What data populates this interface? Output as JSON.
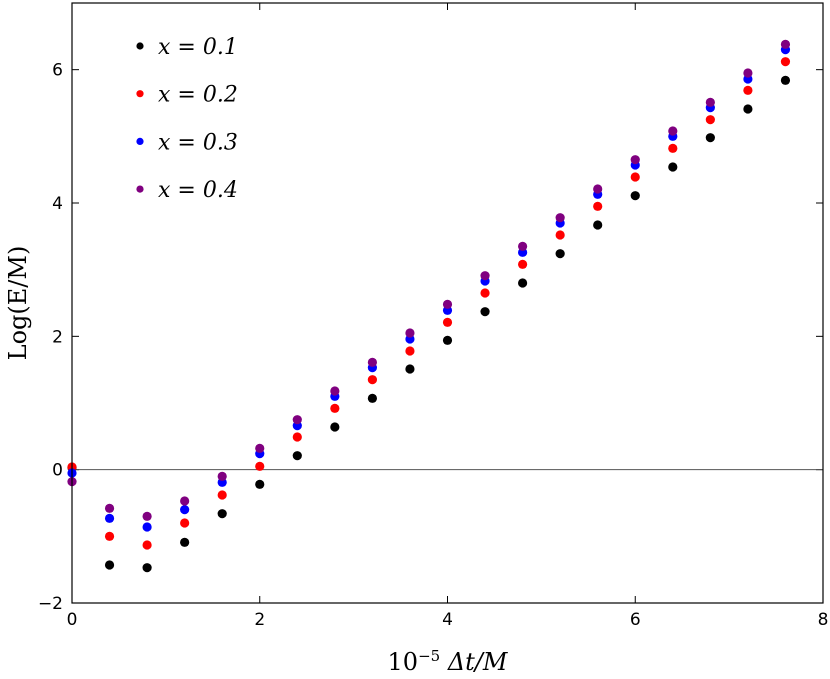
{
  "chart_data": {
    "type": "scatter",
    "xlabel_base": "10",
    "xlabel_exp": "−5",
    "xlabel_rest": " Δt/M",
    "ylabel": "Log(E/M)",
    "xlim": [
      0,
      8
    ],
    "ylim": [
      -2,
      7
    ],
    "xticks": [
      0,
      2,
      4,
      6,
      8
    ],
    "yticks": [
      -2,
      0,
      2,
      4,
      6
    ],
    "xtick_labels": [
      "0",
      "2",
      "4",
      "6",
      "8"
    ],
    "ytick_labels": [
      "−2",
      "0",
      "2",
      "4",
      "6"
    ],
    "hline": 0,
    "grid": false,
    "legend_position": "top-left",
    "x": [
      0,
      0.4,
      0.8,
      1.2,
      1.6,
      2.0,
      2.4,
      2.8,
      3.2,
      3.6,
      4.0,
      4.4,
      4.8,
      5.2,
      5.6,
      6.0,
      6.4,
      6.8,
      7.2,
      7.6
    ],
    "series": [
      {
        "name": "x = 0.1",
        "color": "#000000",
        "values": [
          0.03,
          -1.43,
          -1.47,
          -1.09,
          -0.66,
          -0.22,
          0.21,
          0.64,
          1.07,
          1.51,
          1.94,
          2.37,
          2.8,
          3.24,
          3.67,
          4.11,
          4.54,
          4.98,
          5.41,
          5.84
        ]
      },
      {
        "name": "x = 0.2",
        "color": "#ff0000",
        "values": [
          0.04,
          -1.0,
          -1.13,
          -0.8,
          -0.38,
          0.05,
          0.49,
          0.92,
          1.35,
          1.78,
          2.21,
          2.65,
          3.08,
          3.52,
          3.95,
          4.39,
          4.82,
          5.25,
          5.69,
          6.12
        ]
      },
      {
        "name": "x = 0.3",
        "color": "#0000ff",
        "values": [
          -0.05,
          -0.73,
          -0.86,
          -0.6,
          -0.19,
          0.24,
          0.66,
          1.1,
          1.53,
          1.96,
          2.39,
          2.83,
          3.26,
          3.7,
          4.13,
          4.57,
          5.0,
          5.43,
          5.86,
          6.3
        ]
      },
      {
        "name": "x = 0.4",
        "color": "#800080",
        "values": [
          -0.18,
          -0.58,
          -0.7,
          -0.47,
          -0.1,
          0.32,
          0.75,
          1.18,
          1.61,
          2.05,
          2.48,
          2.91,
          3.35,
          3.78,
          4.21,
          4.65,
          5.08,
          5.51,
          5.95,
          6.38
        ]
      }
    ]
  }
}
